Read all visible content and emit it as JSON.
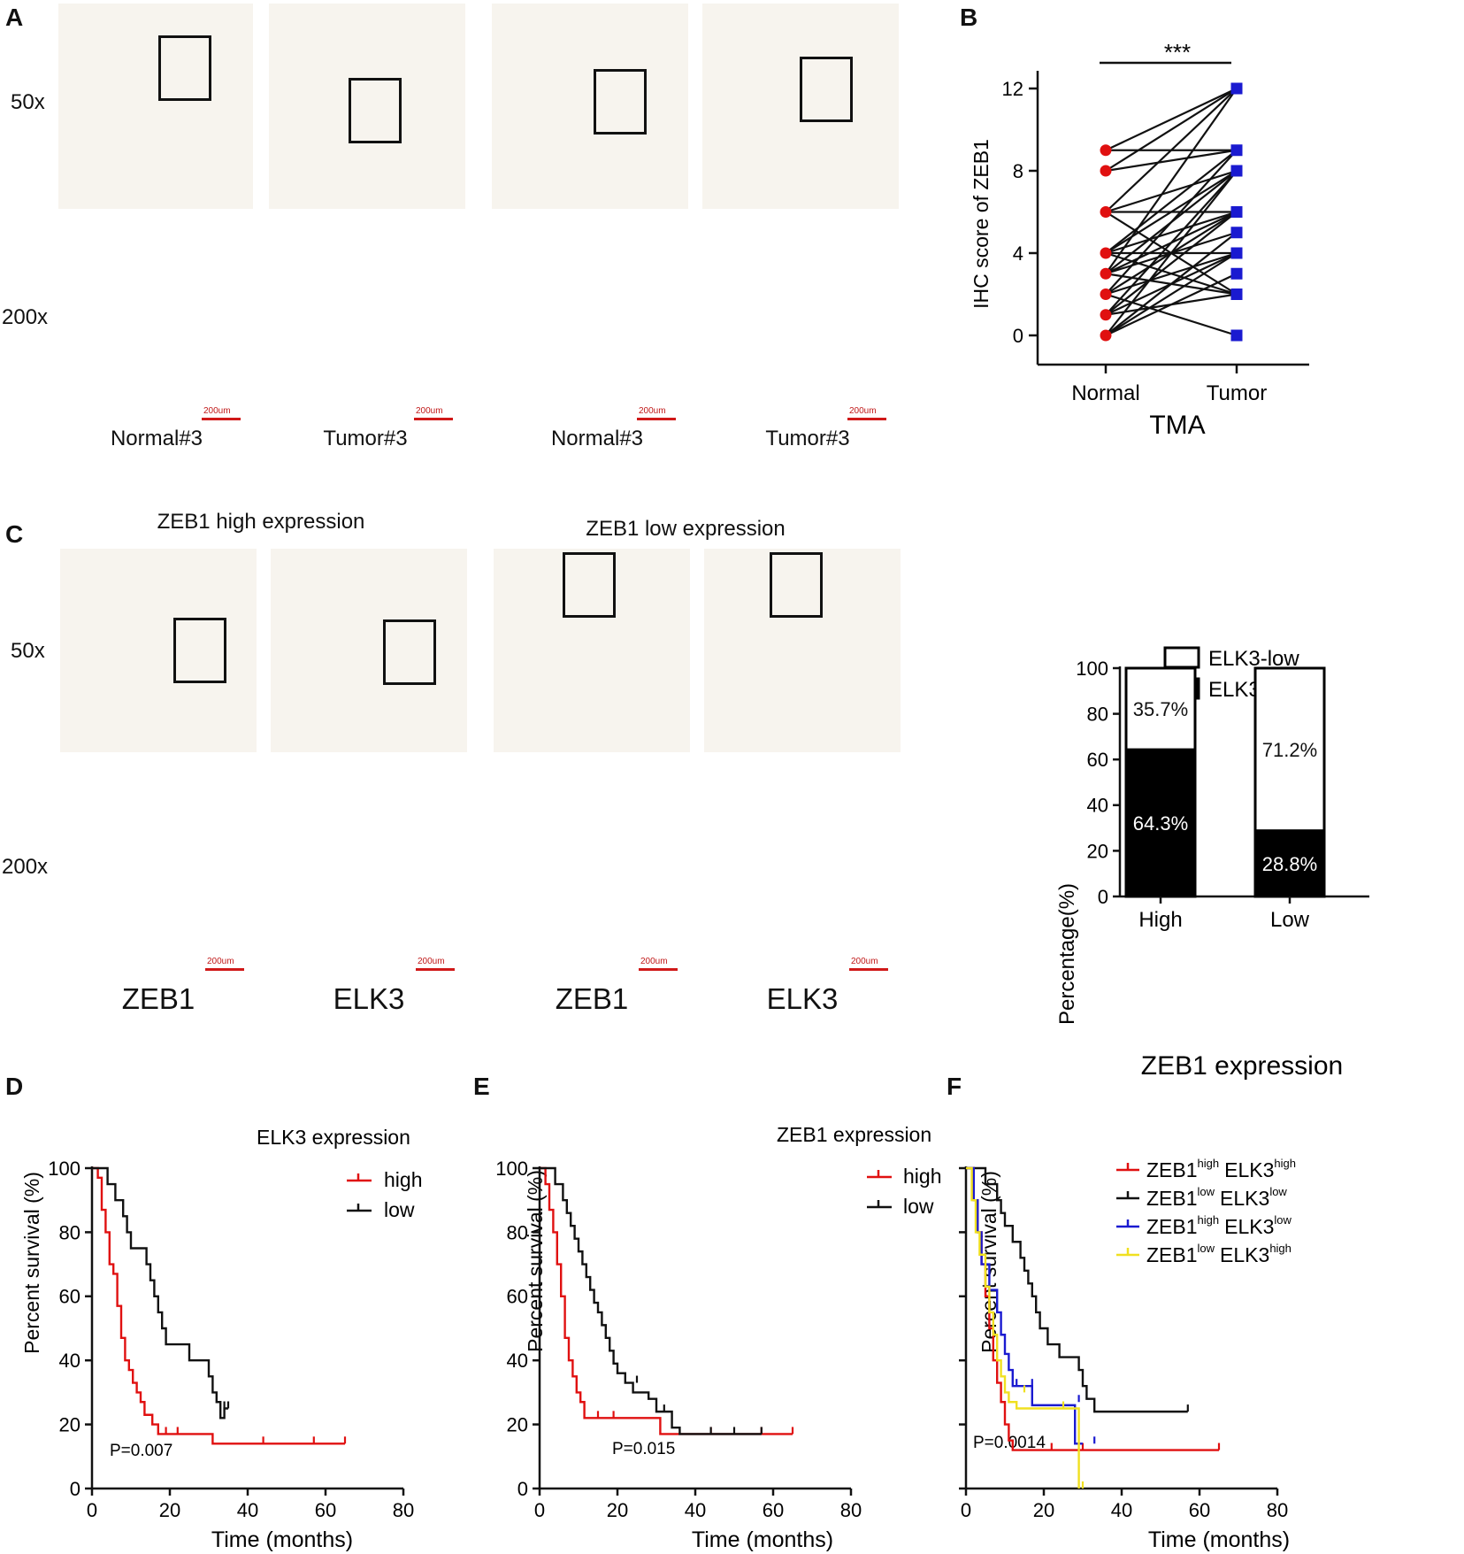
{
  "panels": {
    "A": {
      "letter": "A",
      "mag_low": "50x",
      "mag_high": "200x",
      "captions": [
        "Normal#3",
        "Tumor#3",
        "Normal#3",
        "Tumor#3"
      ],
      "scale_label": "200um",
      "tissue": [
        {
          "low": "#d9d4ca",
          "high": "#cbb79c",
          "stain": "mixed"
        },
        {
          "low": "#9a6b3a",
          "high": "#a27446",
          "stain": "brown"
        },
        {
          "low": "#b2b0b4",
          "high": "#c9cbd6",
          "stain": "blue"
        },
        {
          "low": "#90643a",
          "high": "#6e4420",
          "stain": "brown"
        }
      ]
    },
    "B": {
      "letter": "B"
    },
    "C": {
      "letter": "C",
      "title_high": "ZEB1 high expression",
      "title_low": "ZEB1 low expression",
      "mag_low": "50x",
      "mag_high": "200x",
      "captions": [
        "ZEB1",
        "ELK3",
        "ZEB1",
        "ELK3"
      ],
      "scale_label": "200um",
      "tissue": [
        {
          "low": "#c7b293",
          "high": "#c4a47c",
          "stain": "brown"
        },
        {
          "low": "#c7b293",
          "high": "#c3a27a",
          "stain": "brown"
        },
        {
          "low": "#d9d2c4",
          "high": "#c9c1b1",
          "stain": "mixed"
        },
        {
          "low": "#dad4c8",
          "high": "#cfc7b9",
          "stain": "mixed"
        }
      ]
    },
    "D": {
      "letter": "D"
    },
    "E": {
      "letter": "E"
    },
    "F": {
      "letter": "F"
    }
  },
  "chart_data": [
    {
      "id": "B",
      "type": "scatter",
      "subtype": "paired-dot",
      "categories": [
        "Normal",
        "Tumor"
      ],
      "xlabel": "TMA",
      "ylabel": "IHC score of ZEB1",
      "ylim": [
        0,
        12
      ],
      "yticks": [
        0,
        4,
        8,
        12
      ],
      "significance": "***",
      "normal_marker_color": "#e01010",
      "tumor_marker_color": "#1a1ad0",
      "pairs": [
        [
          9,
          12
        ],
        [
          9,
          9
        ],
        [
          8,
          12
        ],
        [
          8,
          9
        ],
        [
          6,
          12
        ],
        [
          6,
          8
        ],
        [
          6,
          6
        ],
        [
          6,
          2
        ],
        [
          4,
          9
        ],
        [
          4,
          8
        ],
        [
          4,
          6
        ],
        [
          4,
          4
        ],
        [
          4,
          2
        ],
        [
          3,
          12
        ],
        [
          3,
          8
        ],
        [
          3,
          6
        ],
        [
          3,
          5
        ],
        [
          3,
          2
        ],
        [
          2,
          9
        ],
        [
          2,
          6
        ],
        [
          2,
          4
        ],
        [
          2,
          0
        ],
        [
          1,
          8
        ],
        [
          1,
          6
        ],
        [
          1,
          4
        ],
        [
          1,
          2
        ],
        [
          0,
          8
        ],
        [
          0,
          5
        ],
        [
          0,
          4
        ],
        [
          0,
          3
        ]
      ]
    },
    {
      "id": "C",
      "type": "bar",
      "subtype": "stacked-percent",
      "categories": [
        "High",
        "Low"
      ],
      "xlabel": "ZEB1 expression",
      "ylabel": "Percentage(%)",
      "ylim": [
        0,
        100
      ],
      "yticks": [
        0,
        20,
        40,
        60,
        80,
        100
      ],
      "legend": [
        {
          "name": "ELK3-low",
          "color": "#ffffff"
        },
        {
          "name": "ELK3-high",
          "color": "#000000"
        }
      ],
      "series": [
        {
          "name": "ELK3-high",
          "values": [
            64.3,
            28.8
          ],
          "labels": [
            "64.3%",
            "28.8%"
          ],
          "color": "#000000"
        },
        {
          "name": "ELK3-low",
          "values": [
            35.7,
            71.2
          ],
          "labels": [
            "35.7%",
            "71.2%"
          ],
          "color": "#ffffff"
        }
      ]
    },
    {
      "id": "D",
      "type": "line",
      "subtype": "kaplan-meier",
      "xlabel": "Time (months)",
      "ylabel": "Percent survival (%)",
      "xlim": [
        0,
        80
      ],
      "ylim": [
        0,
        100
      ],
      "xticks": [
        0,
        20,
        40,
        60,
        80
      ],
      "yticks": [
        0,
        20,
        40,
        60,
        80,
        100
      ],
      "legend_title": "ELK3 expression",
      "pvalue": "P=0.007",
      "series": [
        {
          "name": "high",
          "color": "#e01010",
          "steps": [
            [
              0,
              100
            ],
            [
              1.5,
              97
            ],
            [
              2.5,
              87
            ],
            [
              3.5,
              80
            ],
            [
              4.5,
              70
            ],
            [
              5.5,
              67
            ],
            [
              6.5,
              57
            ],
            [
              7.5,
              47
            ],
            [
              8.5,
              40
            ],
            [
              9.5,
              37
            ],
            [
              10.5,
              33
            ],
            [
              11.5,
              30
            ],
            [
              12.5,
              27
            ],
            [
              13.5,
              23
            ],
            [
              15.5,
              20
            ],
            [
              17,
              17
            ],
            [
              31,
              14
            ],
            [
              65,
              14
            ]
          ],
          "censor": [
            [
              19,
              17
            ],
            [
              22,
              17
            ],
            [
              44,
              14
            ],
            [
              57,
              14
            ],
            [
              65,
              14
            ]
          ]
        },
        {
          "name": "low",
          "color": "#111111",
          "steps": [
            [
              0,
              100
            ],
            [
              4,
              95
            ],
            [
              6,
              90
            ],
            [
              8,
              85
            ],
            [
              9,
              80
            ],
            [
              10,
              75
            ],
            [
              14,
              70
            ],
            [
              15,
              65
            ],
            [
              16,
              60
            ],
            [
              17,
              55
            ],
            [
              18,
              50
            ],
            [
              19,
              45
            ],
            [
              25,
              40
            ],
            [
              30,
              35
            ],
            [
              31,
              30
            ],
            [
              32,
              27
            ],
            [
              33,
              22
            ],
            [
              34,
              25
            ],
            [
              35,
              25
            ]
          ],
          "censor": [
            [
              34,
              25
            ],
            [
              35,
              25
            ]
          ]
        }
      ]
    },
    {
      "id": "E",
      "type": "line",
      "subtype": "kaplan-meier",
      "xlabel": "Time (months)",
      "ylabel": "Percent survival (%)",
      "xlim": [
        0,
        80
      ],
      "ylim": [
        0,
        100
      ],
      "xticks": [
        0,
        20,
        40,
        60,
        80
      ],
      "yticks": [
        0,
        20,
        40,
        60,
        80,
        100
      ],
      "legend_title": "ZEB1 expression",
      "pvalue": "P=0.015",
      "series": [
        {
          "name": "high",
          "color": "#e01010",
          "steps": [
            [
              0,
              100
            ],
            [
              1.5,
              95
            ],
            [
              2.5,
              87
            ],
            [
              3.5,
              80
            ],
            [
              4.5,
              70
            ],
            [
              5.5,
              60
            ],
            [
              6.5,
              47
            ],
            [
              7.5,
              40
            ],
            [
              8.5,
              35
            ],
            [
              9.5,
              30
            ],
            [
              10.5,
              27
            ],
            [
              11.5,
              22
            ],
            [
              31,
              17
            ],
            [
              65,
              17
            ]
          ],
          "censor": [
            [
              15,
              22
            ],
            [
              19,
              22
            ],
            [
              44,
              17
            ],
            [
              57,
              17
            ],
            [
              65,
              17
            ]
          ]
        },
        {
          "name": "low",
          "color": "#111111",
          "steps": [
            [
              0,
              100
            ],
            [
              4,
              95
            ],
            [
              6,
              90
            ],
            [
              7,
              86
            ],
            [
              8,
              82
            ],
            [
              9,
              78
            ],
            [
              10,
              74
            ],
            [
              11,
              70
            ],
            [
              12,
              66
            ],
            [
              13,
              62
            ],
            [
              14,
              58
            ],
            [
              15,
              55
            ],
            [
              16,
              51
            ],
            [
              17,
              47
            ],
            [
              18,
              43
            ],
            [
              19,
              39
            ],
            [
              20,
              36
            ],
            [
              22,
              33
            ],
            [
              24,
              30
            ],
            [
              28,
              28
            ],
            [
              30,
              24
            ],
            [
              34,
              19
            ],
            [
              36,
              17
            ],
            [
              57,
              17
            ]
          ],
          "censor": [
            [
              25,
              33
            ],
            [
              32,
              24
            ],
            [
              44,
              17
            ],
            [
              50,
              17
            ],
            [
              57,
              17
            ]
          ]
        }
      ]
    },
    {
      "id": "F",
      "type": "line",
      "subtype": "kaplan-meier",
      "xlabel": "Time (months)",
      "ylabel": "Percent survival (%)",
      "xlim": [
        0,
        80
      ],
      "ylim": [
        0,
        100
      ],
      "xticks": [
        0,
        20,
        40,
        60,
        80
      ],
      "yticks": [
        0,
        20,
        40,
        60,
        80,
        100
      ],
      "pvalue": "P=0.0014",
      "legend": [
        {
          "a": "ZEB1",
          "a_sup": "high",
          "b": "ELK3",
          "b_sup": "high",
          "color": "#e01010"
        },
        {
          "a": "ZEB1",
          "a_sup": "low",
          "b": "ELK3",
          "b_sup": "low",
          "color": "#111111"
        },
        {
          "a": "ZEB1",
          "a_sup": "high",
          "b": "ELK3",
          "b_sup": "low",
          "color": "#1a1ad0"
        },
        {
          "a": "ZEB1",
          "a_sup": "low",
          "b": "ELK3",
          "b_sup": "high",
          "color": "#f0e020"
        }
      ],
      "series": [
        {
          "name": "ZEB1high ELK3high",
          "color": "#e01010",
          "steps": [
            [
              0,
              100
            ],
            [
              2,
              90
            ],
            [
              3,
              80
            ],
            [
              4,
              70
            ],
            [
              5,
              60
            ],
            [
              6,
              50
            ],
            [
              7,
              40
            ],
            [
              8,
              33
            ],
            [
              9,
              27
            ],
            [
              10,
              20
            ],
            [
              11,
              15
            ],
            [
              12,
              12
            ],
            [
              65,
              12
            ]
          ],
          "censor": [
            [
              22,
              12
            ],
            [
              30,
              12
            ],
            [
              65,
              12
            ]
          ]
        },
        {
          "name": "ZEB1low ELK3low",
          "color": "#111111",
          "steps": [
            [
              0,
              100
            ],
            [
              5,
              95
            ],
            [
              8,
              90
            ],
            [
              9,
              86
            ],
            [
              10,
              82
            ],
            [
              12,
              77
            ],
            [
              14,
              72
            ],
            [
              15,
              68
            ],
            [
              16,
              64
            ],
            [
              17,
              60
            ],
            [
              18,
              55
            ],
            [
              19,
              50
            ],
            [
              21,
              45
            ],
            [
              24,
              41
            ],
            [
              29,
              37
            ],
            [
              30,
              32
            ],
            [
              31,
              28
            ],
            [
              33,
              24
            ],
            [
              57,
              24
            ]
          ],
          "censor": [
            [
              57,
              24
            ]
          ]
        },
        {
          "name": "ZEB1high ELK3low",
          "color": "#1a1ad0",
          "steps": [
            [
              0,
              100
            ],
            [
              2,
              90
            ],
            [
              3,
              80
            ],
            [
              4,
              70
            ],
            [
              6,
              62
            ],
            [
              8,
              55
            ],
            [
              9,
              48
            ],
            [
              10,
              42
            ],
            [
              11,
              37
            ],
            [
              12,
              32
            ],
            [
              17,
              26
            ],
            [
              28,
              14
            ],
            [
              30,
              14
            ]
          ],
          "censor": [
            [
              13,
              32
            ],
            [
              17,
              32
            ],
            [
              29,
              27
            ],
            [
              33,
              14
            ]
          ]
        },
        {
          "name": "ZEB1low ELK3high",
          "color": "#f0e020",
          "steps": [
            [
              0,
              100
            ],
            [
              1.5,
              90
            ],
            [
              2.5,
              80
            ],
            [
              3.5,
              73
            ],
            [
              5,
              63
            ],
            [
              6,
              55
            ],
            [
              7,
              48
            ],
            [
              8,
              40
            ],
            [
              9,
              35
            ],
            [
              10,
              30
            ],
            [
              11,
              27
            ],
            [
              13,
              25
            ],
            [
              29,
              0
            ]
          ],
          "censor": [
            [
              15,
              30
            ],
            [
              25,
              25
            ],
            [
              30,
              0
            ]
          ]
        }
      ]
    }
  ]
}
